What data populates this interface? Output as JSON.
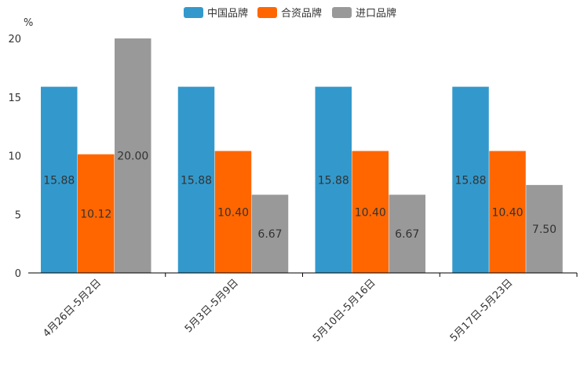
{
  "chart_data": {
    "type": "bar",
    "title": "",
    "xlabel": "",
    "ylabel": "%",
    "ylim": [
      0,
      20
    ],
    "yticks": [
      0,
      5,
      10,
      15,
      20
    ],
    "grid": false,
    "legend_position": "top-center",
    "categories": [
      "4月26日-5月2日",
      "5月3日-5月9日",
      "5月10日-5月16日",
      "5月17日-5月23日"
    ],
    "series": [
      {
        "name": "中国品牌",
        "color": "#3399cc",
        "values": [
          15.88,
          15.88,
          15.88,
          15.88
        ],
        "labels": [
          "15.88",
          "15.88",
          "15.88",
          "15.88"
        ]
      },
      {
        "name": "合资品牌",
        "color": "#ff6600",
        "values": [
          10.12,
          10.4,
          10.4,
          10.4
        ],
        "labels": [
          "10.12",
          "10.40",
          "10.40",
          "10.40"
        ]
      },
      {
        "name": "进口品牌",
        "color": "#999999",
        "values": [
          20.0,
          6.67,
          6.67,
          7.5
        ],
        "labels": [
          "20.00",
          "6.67",
          "6.67",
          "7.50"
        ]
      }
    ]
  }
}
